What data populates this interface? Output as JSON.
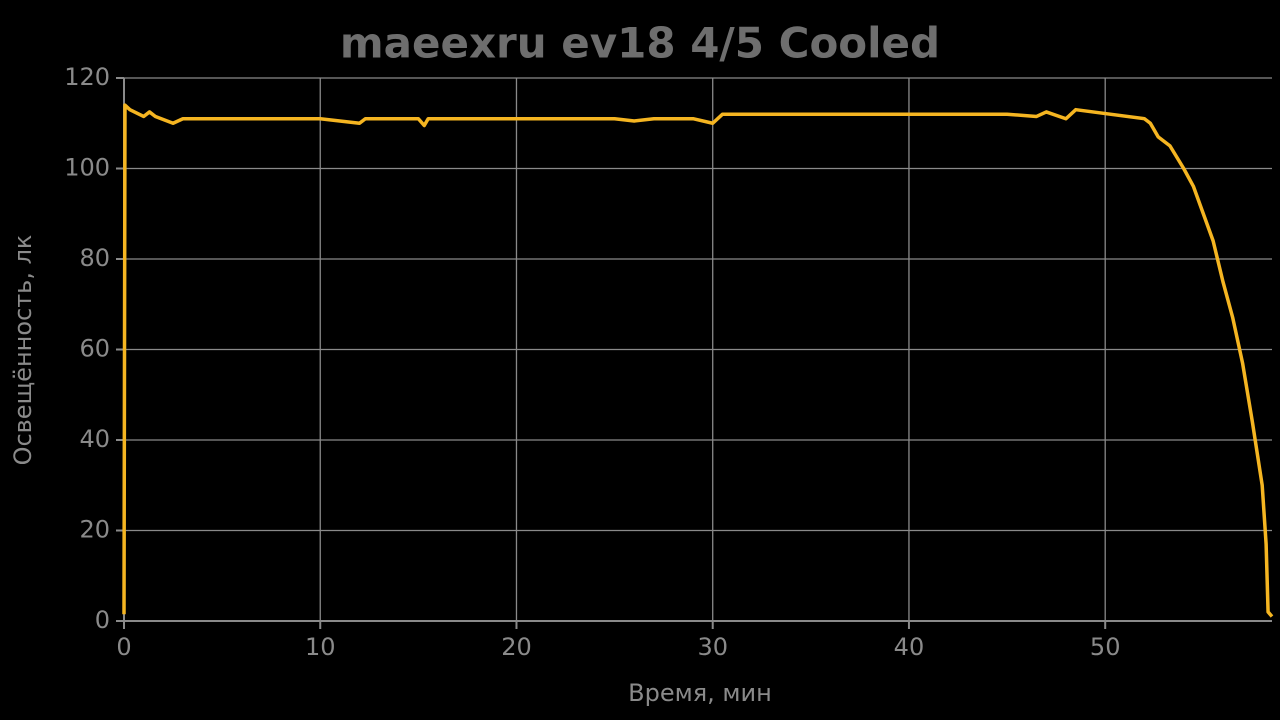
{
  "chart_data": {
    "type": "line",
    "title": "maeexru ev18 4/5 Cooled",
    "x_label": "Время, мин",
    "y_label": "Освещённость, лк",
    "x": [
      0,
      0.05,
      0.3,
      1,
      1.3,
      1.6,
      2.5,
      3,
      5,
      8,
      10,
      12,
      12.3,
      15,
      15.3,
      15.5,
      19,
      25,
      26,
      27,
      29,
      30,
      30.5,
      35,
      40,
      45,
      46.5,
      47,
      48,
      48.5,
      52,
      52.3,
      52.7,
      53.3,
      54,
      54.5,
      55,
      55.5,
      56,
      56.5,
      57,
      57.5,
      58,
      58.2,
      58.3,
      58.5
    ],
    "series": [
      {
        "color": "#f5b521",
        "values": [
          1.5,
          114,
          113,
          111.5,
          112.5,
          111.5,
          110,
          111,
          111,
          111,
          111,
          110,
          111,
          111,
          109.5,
          111,
          111,
          111,
          110.5,
          111,
          111,
          110,
          112,
          112,
          112,
          112,
          111.5,
          112.5,
          111,
          113,
          111,
          110,
          107,
          105,
          100,
          96,
          90,
          84,
          75,
          67,
          57,
          44,
          30,
          17,
          2,
          1
        ]
      }
    ],
    "xlim": [
      0,
      58.5
    ],
    "ylim": [
      0,
      120
    ],
    "xticks": [
      0,
      10,
      20,
      30,
      40,
      50
    ],
    "yticks": [
      0,
      20,
      40,
      60,
      80,
      100,
      120
    ],
    "grid": true
  }
}
